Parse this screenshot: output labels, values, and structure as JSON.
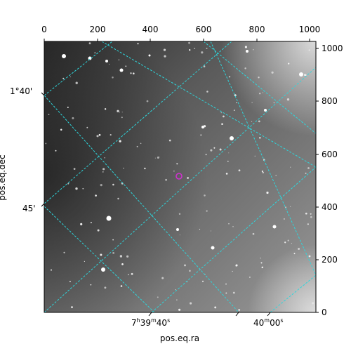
{
  "axes": {
    "xlabel": "pos.eq.ra",
    "ylabel": "pos.eq.dec",
    "top_ticks": [
      "0",
      "200",
      "400",
      "600",
      "800",
      "1000"
    ],
    "right_ticks": [
      "1000",
      "800",
      "600",
      "400",
      "200",
      "0"
    ],
    "ra_ticks": [
      {
        "h": "7",
        "m": "39",
        "s": "40"
      },
      {
        "m": "40",
        "s": "00"
      }
    ],
    "dec_ticks": [
      "1°40'",
      "45'"
    ]
  },
  "colors": {
    "grid": "#2ed6dc",
    "marker": "#d12fd1",
    "frame": "#000000"
  },
  "marker": {
    "shape": "circle",
    "icon": "target-marker-icon"
  }
}
